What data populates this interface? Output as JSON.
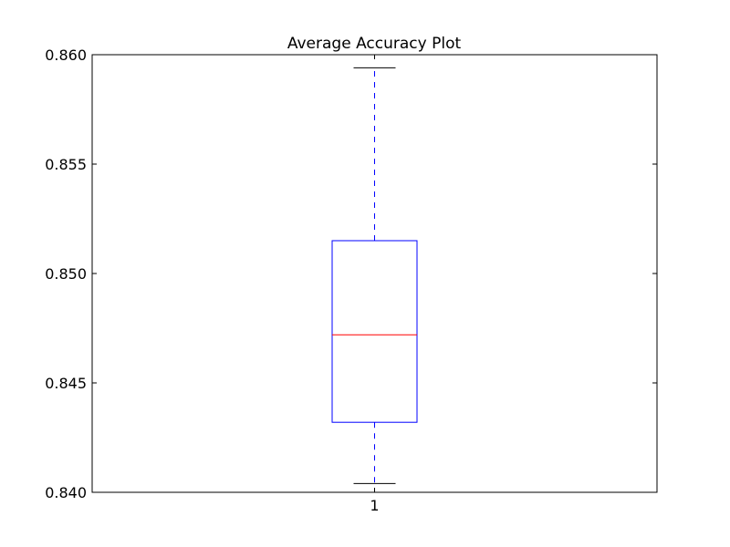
{
  "chart_data": {
    "type": "box",
    "title": "Average Accuracy Plot",
    "xlabel": "",
    "ylabel": "",
    "ylim": [
      0.84,
      0.86
    ],
    "y_ticks": [
      "0.840",
      "0.845",
      "0.850",
      "0.855",
      "0.860"
    ],
    "categories": [
      "1"
    ],
    "boxes": [
      {
        "label": "1",
        "whisker_low": 0.8404,
        "q1": 0.8432,
        "median": 0.8472,
        "q3": 0.8515,
        "whisker_high": 0.8594
      }
    ],
    "grid": false,
    "colors": {
      "box": "#0000ff",
      "median": "#ff0000",
      "whisker": "#0000ff",
      "cap": "#000000",
      "axes": "#000000"
    }
  }
}
